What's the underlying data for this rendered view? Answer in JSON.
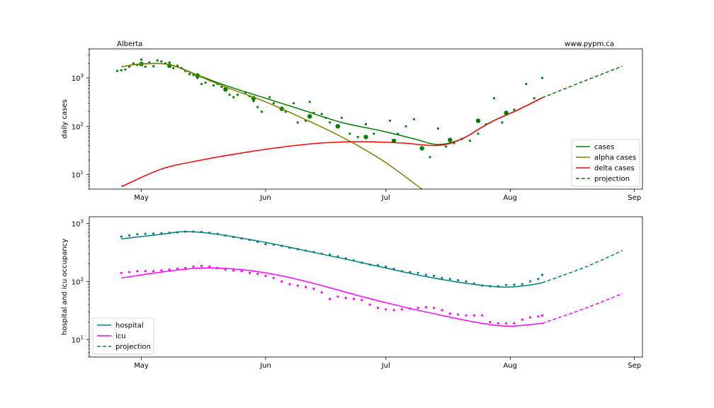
{
  "chart_data": [
    {
      "type": "line",
      "region_label": "Alberta",
      "source_label": "www.pypm.ca",
      "ylabel": "daily cases",
      "yscale": "log",
      "ylim": [
        5,
        4000
      ],
      "xlim": [
        "2021-04-18",
        "2021-09-03"
      ],
      "x_ticks": [
        {
          "date": "2021-05-01",
          "label": "May"
        },
        {
          "date": "2021-06-01",
          "label": "Jun"
        },
        {
          "date": "2021-07-01",
          "label": "Jul"
        },
        {
          "date": "2021-08-01",
          "label": "Aug"
        },
        {
          "date": "2021-09-01",
          "label": "Sep"
        }
      ],
      "y_ticks": [
        {
          "value": 10,
          "base": "10",
          "exp": "1"
        },
        {
          "value": 100,
          "base": "10",
          "exp": "2"
        },
        {
          "value": 1000,
          "base": "10",
          "exp": "3"
        }
      ],
      "legend_position": "lower-right",
      "legend": [
        {
          "label": "cases",
          "color": "#008000",
          "style": "solid"
        },
        {
          "label": "alpha cases",
          "color": "#808000",
          "style": "solid"
        },
        {
          "label": "delta cases",
          "color": "#ff0000",
          "style": "solid"
        },
        {
          "label": "projection",
          "color": "#008000",
          "style": "dashed"
        }
      ],
      "series": [
        {
          "name": "cases",
          "color": "#008000",
          "style": "solid",
          "x": [
            "2021-04-26",
            "2021-05-01",
            "2021-05-08",
            "2021-05-15",
            "2021-05-22",
            "2021-06-01",
            "2021-06-10",
            "2021-06-20",
            "2021-06-30",
            "2021-07-08",
            "2021-07-14",
            "2021-07-20",
            "2021-07-27",
            "2021-08-03",
            "2021-08-09"
          ],
          "y": [
            1700,
            1950,
            1900,
            1150,
            700,
            380,
            220,
            120,
            80,
            55,
            42,
            55,
            120,
            220,
            390
          ]
        },
        {
          "name": "alpha cases",
          "color": "#808000",
          "style": "solid",
          "x": [
            "2021-04-26",
            "2021-05-01",
            "2021-05-08",
            "2021-05-15",
            "2021-05-22",
            "2021-06-01",
            "2021-06-10",
            "2021-06-20",
            "2021-06-30",
            "2021-07-10"
          ],
          "y": [
            1700,
            1950,
            1880,
            1120,
            650,
            320,
            150,
            60,
            20,
            5
          ]
        },
        {
          "name": "delta cases",
          "color": "#ff0000",
          "style": "solid",
          "x": [
            "2021-04-26",
            "2021-05-06",
            "2021-05-16",
            "2021-05-26",
            "2021-06-05",
            "2021-06-15",
            "2021-06-25",
            "2021-07-05",
            "2021-07-14",
            "2021-07-20",
            "2021-07-27",
            "2021-08-03",
            "2021-08-09"
          ],
          "y": [
            5.6,
            13,
            20,
            28,
            37,
            45,
            48,
            45,
            40,
            55,
            120,
            220,
            390
          ]
        },
        {
          "name": "projection",
          "color": "#008000",
          "style": "dashed",
          "x": [
            "2021-08-09",
            "2021-08-20",
            "2021-08-29"
          ],
          "y": [
            390,
            900,
            1750
          ]
        }
      ],
      "scatter_daily": {
        "color": "#008000",
        "x": [
          "2021-04-25",
          "2021-04-26",
          "2021-04-27",
          "2021-04-28",
          "2021-04-29",
          "2021-04-30",
          "2021-05-01",
          "2021-05-02",
          "2021-05-03",
          "2021-05-04",
          "2021-05-05",
          "2021-05-06",
          "2021-05-07",
          "2021-05-08",
          "2021-05-09",
          "2021-05-10",
          "2021-05-11",
          "2021-05-12",
          "2021-05-13",
          "2021-05-14",
          "2021-05-15",
          "2021-05-16",
          "2021-05-17",
          "2021-05-18",
          "2021-05-19",
          "2021-05-20",
          "2021-05-21",
          "2021-05-22",
          "2021-05-23",
          "2021-05-24",
          "2021-05-25",
          "2021-05-27",
          "2021-05-28",
          "2021-05-29",
          "2021-05-30",
          "2021-05-31",
          "2021-06-02",
          "2021-06-03",
          "2021-06-05",
          "2021-06-06",
          "2021-06-08",
          "2021-06-09",
          "2021-06-11",
          "2021-06-12",
          "2021-06-13",
          "2021-06-15",
          "2021-06-16",
          "2021-06-17",
          "2021-06-19",
          "2021-06-20",
          "2021-06-22",
          "2021-06-24",
          "2021-06-26",
          "2021-06-28",
          "2021-07-02",
          "2021-07-04",
          "2021-07-06",
          "2021-07-08",
          "2021-07-10",
          "2021-07-12",
          "2021-07-14",
          "2021-07-16",
          "2021-07-18",
          "2021-07-20",
          "2021-07-22",
          "2021-07-24",
          "2021-07-26",
          "2021-07-28",
          "2021-07-30",
          "2021-08-02",
          "2021-08-05",
          "2021-08-07",
          "2021-08-09"
        ],
        "y": [
          1400,
          1450,
          1500,
          1700,
          2000,
          1850,
          2400,
          1700,
          2100,
          1750,
          2300,
          2200,
          2000,
          2100,
          1600,
          1800,
          1600,
          1400,
          1200,
          1150,
          1000,
          750,
          800,
          900,
          700,
          750,
          650,
          550,
          450,
          400,
          450,
          500,
          420,
          330,
          250,
          200,
          400,
          300,
          230,
          200,
          300,
          120,
          130,
          320,
          190,
          180,
          150,
          120,
          100,
          150,
          70,
          60,
          110,
          70,
          130,
          70,
          100,
          140,
          35,
          23,
          90,
          38,
          45,
          55,
          50,
          70,
          110,
          380,
          120,
          220,
          750,
          380,
          1000
        ]
      },
      "scatter_weekly": {
        "color": "#008000",
        "x": [
          "2021-05-01",
          "2021-05-08",
          "2021-05-15",
          "2021-05-22",
          "2021-05-29",
          "2021-06-05",
          "2021-06-12",
          "2021-06-19",
          "2021-06-26",
          "2021-07-03",
          "2021-07-10",
          "2021-07-17",
          "2021-07-24",
          "2021-07-31"
        ],
        "y": [
          1950,
          1800,
          1120,
          580,
          380,
          230,
          160,
          100,
          60,
          50,
          35,
          52,
          130,
          190
        ]
      }
    },
    {
      "type": "line",
      "ylabel": "hospital and icu occupancy",
      "yscale": "log",
      "ylim": [
        5,
        1300
      ],
      "xlim": [
        "2021-04-18",
        "2021-09-03"
      ],
      "x_ticks": [
        {
          "date": "2021-05-01",
          "label": "May"
        },
        {
          "date": "2021-06-01",
          "label": "Jun"
        },
        {
          "date": "2021-07-01",
          "label": "Jul"
        },
        {
          "date": "2021-08-01",
          "label": "Aug"
        },
        {
          "date": "2021-09-01",
          "label": "Sep"
        }
      ],
      "y_ticks": [
        {
          "value": 10,
          "base": "10",
          "exp": "1"
        },
        {
          "value": 100,
          "base": "10",
          "exp": "2"
        },
        {
          "value": 1000,
          "base": "10",
          "exp": "3"
        }
      ],
      "legend_position": "lower-left",
      "legend": [
        {
          "label": "hospital",
          "color": "#008080",
          "style": "solid"
        },
        {
          "label": "icu",
          "color": "#ff00ff",
          "style": "solid"
        },
        {
          "label": "projection",
          "color": "#008080",
          "style": "dashed"
        }
      ],
      "series": [
        {
          "name": "hospital",
          "color": "#008080",
          "style": "solid",
          "x": [
            "2021-04-26",
            "2021-05-06",
            "2021-05-12",
            "2021-05-20",
            "2021-06-01",
            "2021-06-10",
            "2021-06-20",
            "2021-07-01",
            "2021-07-10",
            "2021-07-20",
            "2021-07-30",
            "2021-08-05",
            "2021-08-09"
          ],
          "y": [
            540,
            650,
            720,
            650,
            470,
            350,
            250,
            170,
            125,
            95,
            80,
            85,
            95
          ]
        },
        {
          "name": "icu",
          "color": "#ff00ff",
          "style": "solid",
          "x": [
            "2021-04-26",
            "2021-05-06",
            "2021-05-16",
            "2021-05-26",
            "2021-06-05",
            "2021-06-15",
            "2021-06-25",
            "2021-07-05",
            "2021-07-15",
            "2021-07-25",
            "2021-08-01",
            "2021-08-09"
          ],
          "y": [
            115,
            145,
            170,
            160,
            125,
            85,
            55,
            37,
            26,
            19,
            17,
            19
          ]
        },
        {
          "name": "projection",
          "color": "#008080",
          "style": "dashed",
          "x": [
            "2021-08-09",
            "2021-08-20",
            "2021-08-29"
          ],
          "y": [
            95,
            180,
            340
          ]
        },
        {
          "name": "icu projection",
          "color": "#ff00ff",
          "style": "dashed",
          "x": [
            "2021-08-09",
            "2021-08-20",
            "2021-08-29"
          ],
          "y": [
            19,
            35,
            62
          ]
        }
      ],
      "scatter_hospital": {
        "color": "#008080",
        "x": [
          "2021-04-26",
          "2021-04-28",
          "2021-04-30",
          "2021-05-02",
          "2021-05-04",
          "2021-05-06",
          "2021-05-08",
          "2021-05-10",
          "2021-05-12",
          "2021-05-14",
          "2021-05-16",
          "2021-05-18",
          "2021-05-20",
          "2021-05-22",
          "2021-05-24",
          "2021-05-26",
          "2021-05-28",
          "2021-05-30",
          "2021-06-01",
          "2021-06-03",
          "2021-06-05",
          "2021-06-07",
          "2021-06-09",
          "2021-06-11",
          "2021-06-13",
          "2021-06-15",
          "2021-06-17",
          "2021-06-19",
          "2021-06-21",
          "2021-06-23",
          "2021-06-25",
          "2021-06-27",
          "2021-06-29",
          "2021-07-01",
          "2021-07-03",
          "2021-07-05",
          "2021-07-07",
          "2021-07-09",
          "2021-07-11",
          "2021-07-13",
          "2021-07-15",
          "2021-07-17",
          "2021-07-19",
          "2021-07-21",
          "2021-07-23",
          "2021-07-25",
          "2021-07-27",
          "2021-07-29",
          "2021-07-31",
          "2021-08-02",
          "2021-08-04",
          "2021-08-06",
          "2021-08-08",
          "2021-08-09"
        ],
        "y": [
          590,
          620,
          650,
          660,
          670,
          680,
          690,
          700,
          720,
          720,
          710,
          690,
          660,
          620,
          580,
          550,
          520,
          480,
          440,
          430,
          410,
          380,
          360,
          340,
          320,
          300,
          290,
          270,
          250,
          230,
          210,
          195,
          190,
          180,
          165,
          150,
          145,
          140,
          130,
          125,
          115,
          110,
          105,
          100,
          92,
          85,
          83,
          83,
          87,
          88,
          90,
          100,
          110,
          130
        ]
      },
      "scatter_icu": {
        "color": "#ff00ff",
        "x": [
          "2021-04-26",
          "2021-04-28",
          "2021-04-30",
          "2021-05-02",
          "2021-05-04",
          "2021-05-06",
          "2021-05-08",
          "2021-05-10",
          "2021-05-12",
          "2021-05-14",
          "2021-05-16",
          "2021-05-18",
          "2021-05-20",
          "2021-05-22",
          "2021-05-24",
          "2021-05-26",
          "2021-05-28",
          "2021-05-30",
          "2021-06-01",
          "2021-06-03",
          "2021-06-05",
          "2021-06-07",
          "2021-06-09",
          "2021-06-11",
          "2021-06-13",
          "2021-06-15",
          "2021-06-17",
          "2021-06-19",
          "2021-06-21",
          "2021-06-23",
          "2021-06-25",
          "2021-06-27",
          "2021-06-29",
          "2021-07-01",
          "2021-07-03",
          "2021-07-05",
          "2021-07-07",
          "2021-07-09",
          "2021-07-11",
          "2021-07-13",
          "2021-07-15",
          "2021-07-17",
          "2021-07-19",
          "2021-07-21",
          "2021-07-23",
          "2021-07-25",
          "2021-07-27",
          "2021-07-29",
          "2021-07-31",
          "2021-08-02",
          "2021-08-04",
          "2021-08-06",
          "2021-08-08",
          "2021-08-09"
        ],
        "y": [
          140,
          145,
          150,
          150,
          150,
          155,
          160,
          165,
          170,
          180,
          185,
          180,
          170,
          160,
          155,
          150,
          140,
          135,
          125,
          115,
          100,
          90,
          85,
          80,
          75,
          65,
          50,
          55,
          52,
          50,
          48,
          40,
          35,
          33,
          32,
          33,
          34,
          35,
          36,
          35,
          32,
          28,
          27,
          26,
          26,
          26,
          20,
          19,
          19,
          19,
          22,
          24,
          25,
          26
        ]
      }
    }
  ]
}
